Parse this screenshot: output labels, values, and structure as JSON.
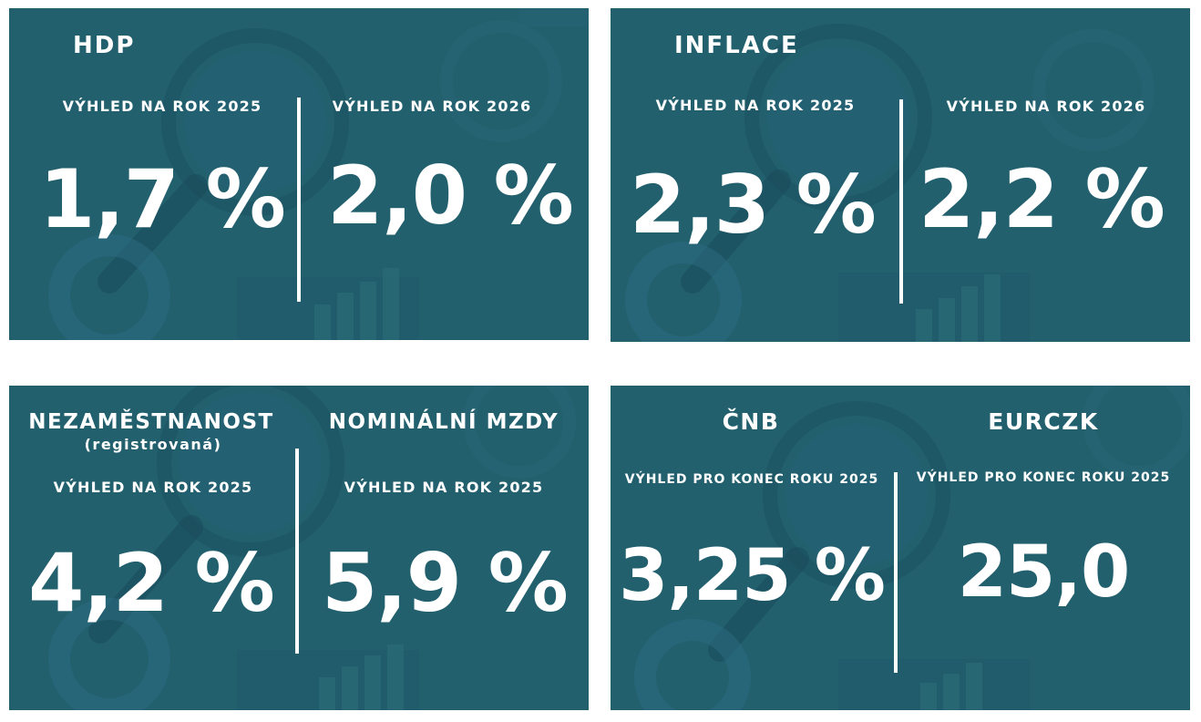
{
  "theme": {
    "panel_bg": "#22606e",
    "text": "#ffffff",
    "bg_motif": "magnifier-and-charts"
  },
  "hdp": {
    "title": "HDP",
    "left": {
      "label": "VÝHLED NA ROK 2025",
      "value": "1,7 %"
    },
    "right": {
      "label": "VÝHLED NA ROK 2026",
      "value": "2,0 %"
    }
  },
  "inflace": {
    "title": "INFLACE",
    "left": {
      "label": "VÝHLED NA ROK 2025",
      "value": "2,3 %"
    },
    "right": {
      "label": "VÝHLED NA ROK 2026",
      "value": "2,2 %"
    }
  },
  "labor": {
    "left": {
      "title": "NEZAMĚSTNANOST",
      "note": "(registrovaná)",
      "label": "VÝHLED NA ROK 2025",
      "value": "4,2 %"
    },
    "right": {
      "title": "NOMINÁLNÍ MZDY",
      "label": "VÝHLED NA ROK 2025",
      "value": "5,9 %"
    }
  },
  "cnb": {
    "left": {
      "title": "ČNB",
      "label": "VÝHLED PRO KONEC ROKU 2025",
      "value": "3,25 %"
    },
    "right": {
      "title": "EURCZK",
      "label": "VÝHLED PRO KONEC ROKU 2025",
      "value": "25,0"
    }
  }
}
